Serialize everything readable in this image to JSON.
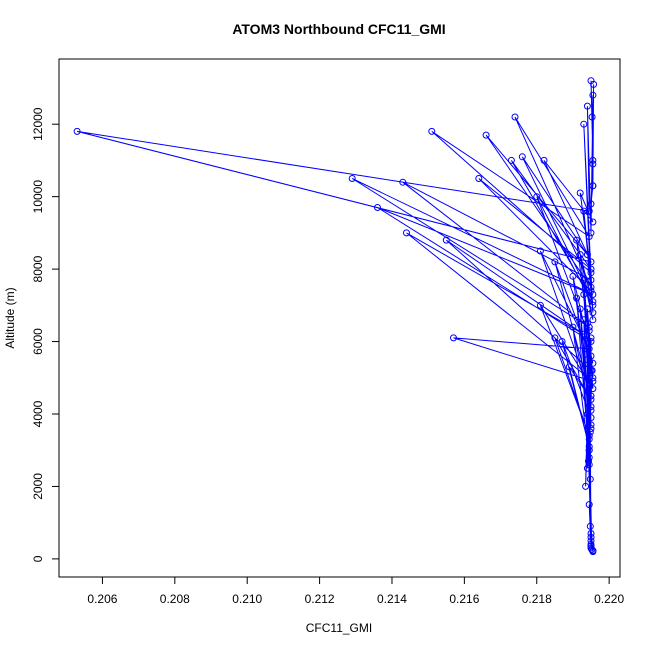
{
  "chart_data": {
    "type": "line",
    "title": "ATOM3 Northbound CFC11_GMI",
    "xlabel": "CFC11_GMI",
    "ylabel": "Altitude (m)",
    "xlim": [
      0.2048,
      0.2203
    ],
    "ylim": [
      -500,
      13800
    ],
    "x_ticks": [
      0.206,
      0.208,
      0.21,
      0.212,
      0.214,
      0.216,
      0.218,
      0.22
    ],
    "x_tick_labels": [
      "0.206",
      "0.208",
      "0.210",
      "0.212",
      "0.214",
      "0.216",
      "0.218",
      "0.220"
    ],
    "y_ticks": [
      0,
      2000,
      4000,
      6000,
      8000,
      10000,
      12000
    ],
    "y_tick_labels": [
      "0",
      "2000",
      "4000",
      "6000",
      "8000",
      "10000",
      "12000"
    ],
    "grid": false,
    "legend": "none",
    "series_color": "#0000ff",
    "marker": "open-circle",
    "x": [
      0.21955,
      0.2195,
      0.21955,
      0.21948,
      0.2195,
      0.21945,
      0.21952,
      0.21948,
      0.2195,
      0.21945,
      0.21943,
      0.21948,
      0.2195,
      0.2194,
      0.2195,
      0.21945,
      0.2194,
      0.21953,
      0.21945,
      0.2194,
      0.2195,
      0.21938,
      0.21945,
      0.2195,
      0.21935,
      0.21945,
      0.2195,
      0.2193,
      0.21945,
      0.2192,
      0.2195,
      0.2191,
      0.21945,
      0.219,
      0.2195,
      0.2187,
      0.21945,
      0.2189,
      0.2195,
      0.2185,
      0.21945,
      0.2181,
      0.21955,
      0.2194,
      0.2195,
      0.2194,
      0.21955,
      0.2193,
      0.2195,
      0.219,
      0.21955,
      0.2185,
      0.2195,
      0.2181,
      0.21945,
      0.2157,
      0.21955,
      0.2144,
      0.2193,
      0.2155,
      0.2195,
      0.2193,
      0.21955,
      0.2192,
      0.2195,
      0.2191,
      0.21955,
      0.218,
      0.2195,
      0.2136,
      0.21955,
      0.2129,
      0.21945,
      0.2143,
      0.2195,
      0.2193,
      0.21955,
      0.2193,
      0.2195,
      0.2164,
      0.2195,
      0.2173,
      0.21955,
      0.2176,
      0.2194,
      0.2166,
      0.2195,
      0.2174,
      0.21945,
      0.2151,
      0.2195,
      0.2192,
      0.21955,
      0.2182,
      0.2195,
      0.2053,
      0.21945,
      0.2194,
      0.2195,
      0.21955,
      0.21955,
      0.21957,
      0.21955,
      0.2195,
      0.21953,
      0.21955,
      0.2195,
      0.21955
    ],
    "y": [
      200,
      500,
      230,
      900,
      300,
      1500,
      260,
      2200,
      350,
      3000,
      2700,
      3500,
      400,
      4000,
      600,
      4800,
      2500,
      5200,
      3000,
      5500,
      700,
      5800,
      3300,
      6100,
      2000,
      6300,
      4200,
      6600,
      2600,
      6900,
      3600,
      7200,
      2800,
      6400,
      3900,
      6000,
      3100,
      5300,
      4400,
      6100,
      3400,
      7000,
      4700,
      6500,
      3700,
      6900,
      5000,
      7300,
      4100,
      7800,
      5400,
      8200,
      4500,
      8500,
      5800,
      6100,
      4900,
      9000,
      6200,
      8800,
      5200,
      7700,
      6600,
      8400,
      5600,
      8800,
      7000,
      10000,
      6000,
      9700,
      7300,
      10500,
      6400,
      10400,
      7700,
      9600,
      6800,
      12000,
      7400,
      10500,
      8000,
      11000,
      7100,
      11100,
      8400,
      11700,
      7500,
      12200,
      8900,
      11800,
      7900,
      10100,
      9300,
      11000,
      8200,
      11800,
      9600,
      12500,
      9000,
      12800,
      10300,
      13100,
      11000,
      13200,
      12200,
      10900,
      9800,
      10300
    ]
  }
}
